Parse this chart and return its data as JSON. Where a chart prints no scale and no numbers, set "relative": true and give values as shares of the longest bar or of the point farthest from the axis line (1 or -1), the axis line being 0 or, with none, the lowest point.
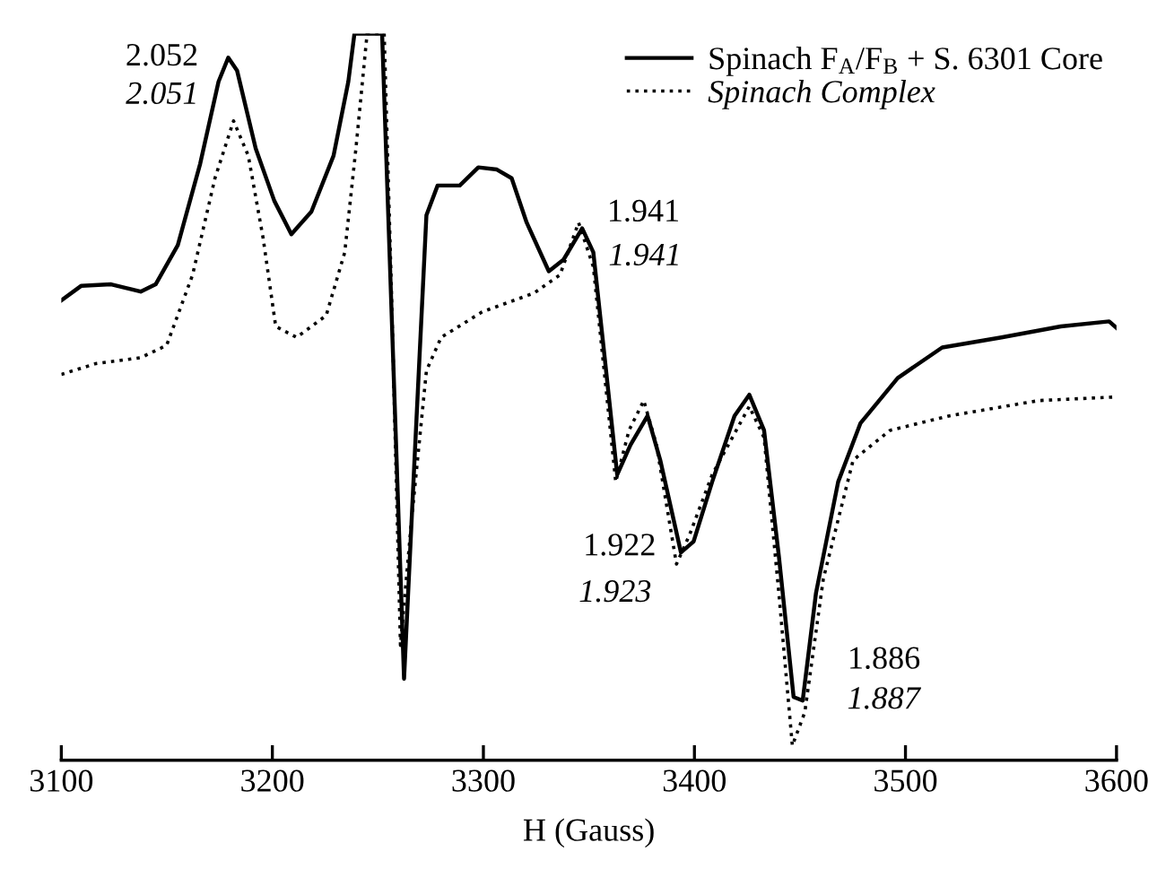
{
  "chart_data": {
    "type": "line",
    "relative": true,
    "xlabel": "H (Gauss)",
    "xlim": [
      3100,
      3600
    ],
    "xticks": [
      3100,
      3200,
      3300,
      3400,
      3500,
      3600
    ],
    "grid": false,
    "legend": "top right",
    "tick_labels": "x",
    "series": [
      {
        "name": "Spinach F$_{A}$/F$_{B}$ + S. 6301 Core",
        "color": "#000000",
        "line_style": "solid",
        "x": [
          3100,
          3109.5,
          3123.6,
          3137.6,
          3144.7,
          3155.2,
          3165.8,
          3174.5,
          3179.1,
          3183.3,
          3192.1,
          3200.9,
          3209,
          3218.5,
          3229,
          3236,
          3238.9,
          3252,
          3262.4,
          3267.7,
          3273,
          3278.3,
          3288.8,
          3297.6,
          3306.4,
          3313.4,
          3320.5,
          3331,
          3338,
          3346.8,
          3352.1,
          3357.4,
          3363.4,
          3369.7,
          3377.8,
          3383.8,
          3393.6,
          3399.6,
          3408.4,
          3419,
          3426,
          3433,
          3440,
          3447,
          3451.3,
          3457.6,
          3468.1,
          3478.7,
          3496.3,
          3517.4,
          3545.5,
          3573.6,
          3596.5,
          3600
        ],
        "values": [
          0.633,
          0.653,
          0.655,
          0.645,
          0.655,
          0.709,
          0.821,
          0.934,
          0.967,
          0.949,
          0.842,
          0.77,
          0.724,
          0.755,
          0.832,
          0.934,
          1.0,
          1.0,
          0.112,
          0.434,
          0.75,
          0.791,
          0.791,
          0.816,
          0.813,
          0.801,
          0.74,
          0.673,
          0.689,
          0.732,
          0.699,
          0.556,
          0.393,
          0.434,
          0.474,
          0.413,
          0.286,
          0.301,
          0.383,
          0.474,
          0.503,
          0.454,
          0.281,
          0.087,
          0.082,
          0.23,
          0.383,
          0.464,
          0.526,
          0.568,
          0.582,
          0.597,
          0.604,
          0.595
        ]
      },
      {
        "name": "Spinach Complex",
        "color": "#000000",
        "line_style": "dotted",
        "x": [
          3100,
          3116.5,
          3137.6,
          3149.9,
          3162.2,
          3172.8,
          3181.6,
          3188.6,
          3195.6,
          3201.6,
          3211.5,
          3225.5,
          3234.3,
          3239.6,
          3244.9,
          3253,
          3256.5,
          3260.7,
          3266,
          3273,
          3280,
          3299.4,
          3324,
          3336.3,
          3345.1,
          3352.1,
          3362.7,
          3369,
          3376,
          3382,
          3391.5,
          3397.8,
          3408.4,
          3426,
          3433,
          3440,
          3446.4,
          3452.3,
          3461.1,
          3475.2,
          3492.7,
          3520.9,
          3563.1,
          3600
        ],
        "values": [
          0.531,
          0.546,
          0.554,
          0.571,
          0.668,
          0.801,
          0.88,
          0.832,
          0.719,
          0.597,
          0.582,
          0.612,
          0.699,
          0.842,
          1.0,
          1.0,
          0.638,
          0.158,
          0.332,
          0.536,
          0.582,
          0.617,
          0.643,
          0.668,
          0.74,
          0.679,
          0.383,
          0.454,
          0.495,
          0.434,
          0.27,
          0.311,
          0.393,
          0.487,
          0.444,
          0.23,
          0.02,
          0.066,
          0.25,
          0.413,
          0.454,
          0.474,
          0.495,
          0.5
        ]
      }
    ],
    "annotations": [
      {
        "text": "2.052",
        "x": 3179.1,
        "y": 0.967
      },
      {
        "text": "2.051",
        "x": 3181.6,
        "y": 0.88
      },
      {
        "text": "1.941",
        "x": 3346.8,
        "y": 0.732
      },
      {
        "text": "1.941",
        "x": 3345.1,
        "y": 0.74
      },
      {
        "text": "1.922",
        "x": 3393.6,
        "y": 0.286
      },
      {
        "text": "1.923",
        "x": 3391.5,
        "y": 0.27
      },
      {
        "text": "1.886",
        "x": 3451.3,
        "y": 0.082
      },
      {
        "text": "1.887",
        "x": 3446.4,
        "y": 0.02
      }
    ]
  }
}
